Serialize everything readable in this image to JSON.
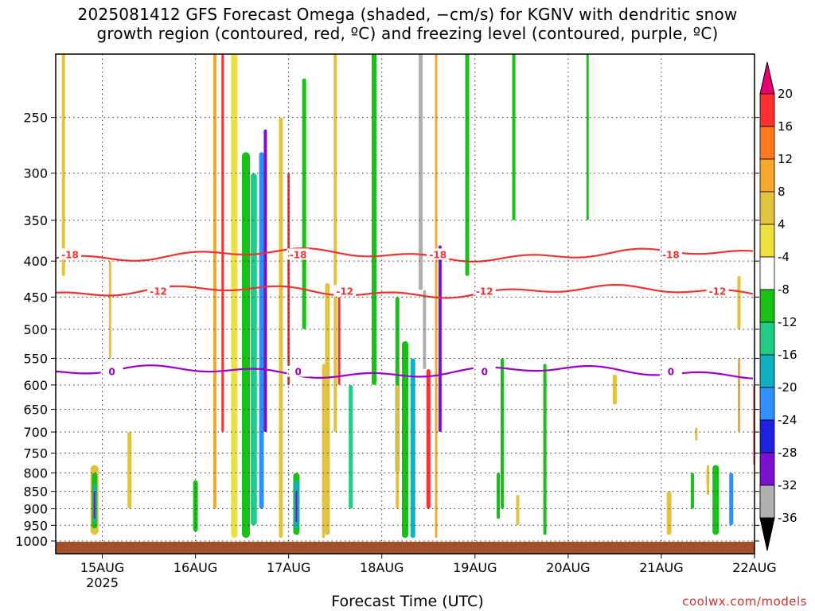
{
  "title_lines": [
    "2025081412 GFS Forecast Omega (shaded, −cm/s) for KGNV with dendritic snow",
    "growth region (contoured, red, ºC) and freezing level (contoured, purple, ºC)"
  ],
  "credit": "coolwx.com/models",
  "chart_data": {
    "type": "heatmap",
    "xlabel": "Forecast Time (UTC)",
    "ylabel": "",
    "x_ticks": [
      "15AUG",
      "16AUG",
      "17AUG",
      "18AUG",
      "19AUG",
      "20AUG",
      "21AUG",
      "22AUG"
    ],
    "x_tick_sub": "2025",
    "xlim": [
      "2025-08-14T12",
      "2025-08-22T00"
    ],
    "y_scale": "log-pressure",
    "y_ticks": [
      250,
      300,
      350,
      400,
      450,
      500,
      550,
      600,
      650,
      700,
      750,
      800,
      850,
      900,
      950,
      1000
    ],
    "ylim": [
      1000,
      200
    ],
    "grid": true,
    "colorbar": {
      "ticks": [
        20,
        16,
        12,
        8,
        4,
        -4,
        -8,
        -12,
        -16,
        -20,
        -24,
        -28,
        -32,
        -36
      ],
      "colors": [
        "#ff3030",
        "#ff7a1e",
        "#f4a92c",
        "#e2c340",
        "#eee040",
        "#ffffff",
        "#18c018",
        "#20cc88",
        "#10b0c0",
        "#3090ff",
        "#2020e0",
        "#7a10d0",
        "#a000c8",
        "#b0b0b0"
      ],
      "top_color": "#e80070",
      "bottom_color": "#000000"
    },
    "contours": [
      {
        "label": "-18",
        "color": "#ee3333",
        "label_positions": [
          "2025-08-14T12",
          "2025-08-17T00",
          "2025-08-18T12",
          "2025-08-21T00"
        ],
        "mean_pressure": 392
      },
      {
        "label": "-12",
        "color": "#ee3333",
        "label_positions": [
          "2025-08-15T12",
          "2025-08-17T12",
          "2025-08-19T00",
          "2025-08-21T12"
        ],
        "mean_pressure": 442
      },
      {
        "label": "0",
        "color": "#9a00c8",
        "label_positions": [
          "2025-08-15T00",
          "2025-08-17T00",
          "2025-08-19T00",
          "2025-08-21T00"
        ],
        "mean_pressure": 575
      }
    ],
    "terrain_color": "#a0522d"
  }
}
